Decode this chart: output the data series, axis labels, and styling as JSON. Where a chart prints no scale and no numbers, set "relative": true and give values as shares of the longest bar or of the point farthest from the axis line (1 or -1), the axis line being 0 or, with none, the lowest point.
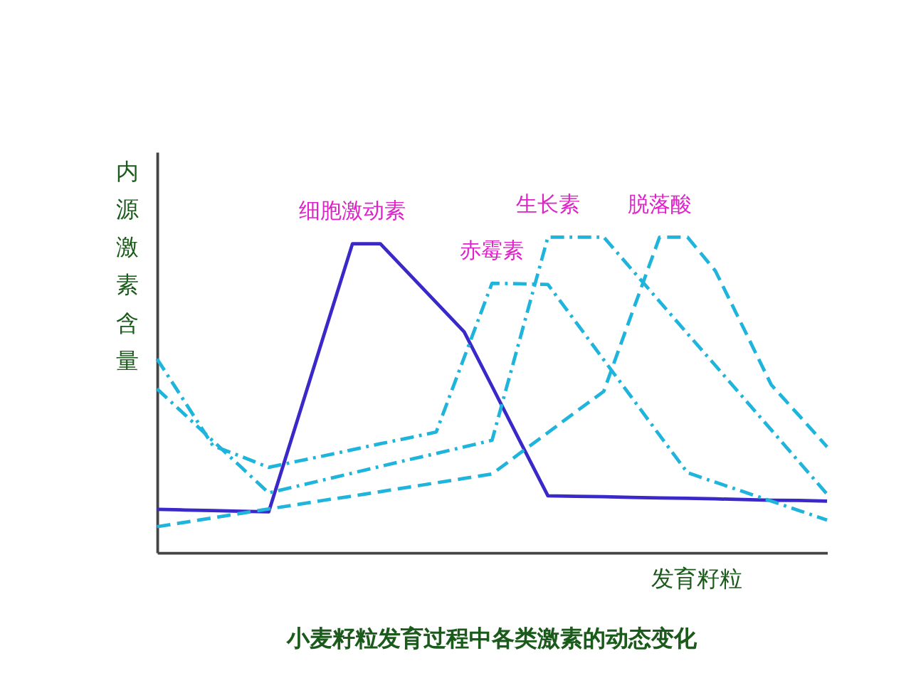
{
  "chart_data": {
    "type": "line",
    "relative": true,
    "title": "小麦籽粒发育过程中各类激素的动态变化",
    "xlabel": "发育籽粒",
    "ylabel": "内源激素含量",
    "tick_labels": false,
    "marker": "none",
    "categories": [
      null,
      null,
      null,
      null,
      null,
      null,
      null,
      null,
      null,
      null,
      null,
      null,
      null,
      null,
      null,
      null,
      null,
      null,
      null,
      null,
      null,
      null,
      null,
      null,
      null
    ],
    "series": [
      {
        "name": "细胞激动素",
        "color": "#3a28c8",
        "line_style": "solid",
        "values": [
          0.137,
          0.135,
          0.133,
          0.131,
          0.129,
          0.412,
          0.696,
          0.979,
          0.979,
          0.886,
          0.793,
          0.7,
          0.527,
          0.353,
          0.18,
          0.178,
          0.177,
          0.175,
          0.173,
          0.172,
          0.17,
          0.168,
          0.166,
          0.165,
          0.163
        ]
      },
      {
        "name": "赤霉素",
        "color": "#1eb4dc",
        "line_style": "dotted",
        "values": [
          0.614,
          0.477,
          0.339,
          0.305,
          0.27,
          0.289,
          0.307,
          0.326,
          0.345,
          0.363,
          0.382,
          0.618,
          0.854,
          0.852,
          0.85,
          0.731,
          0.611,
          0.492,
          0.372,
          0.253,
          0.223,
          0.193,
          0.163,
          0.133,
          0.103
        ]
      },
      {
        "name": "生长素",
        "color": "#1eb4dc",
        "line_style": "dotted",
        "values": [
          0.519,
          0.437,
          0.354,
          0.272,
          0.189,
          0.21,
          0.231,
          0.252,
          0.273,
          0.294,
          0.314,
          0.335,
          0.356,
          0.678,
          1.0,
          1.0,
          1.0,
          0.898,
          0.796,
          0.694,
          0.593,
          0.491,
          0.389,
          0.287,
          0.185
        ]
      },
      {
        "name": "脱落酸",
        "color": "#1eb4dc",
        "line_style": "dashed",
        "values": [
          0.082,
          0.096,
          0.11,
          0.124,
          0.138,
          0.152,
          0.166,
          0.179,
          0.193,
          0.207,
          0.221,
          0.235,
          0.249,
          0.315,
          0.38,
          0.446,
          0.511,
          0.756,
          1.0,
          1.0,
          0.893,
          0.713,
          0.532,
          0.434,
          0.335
        ]
      }
    ]
  }
}
